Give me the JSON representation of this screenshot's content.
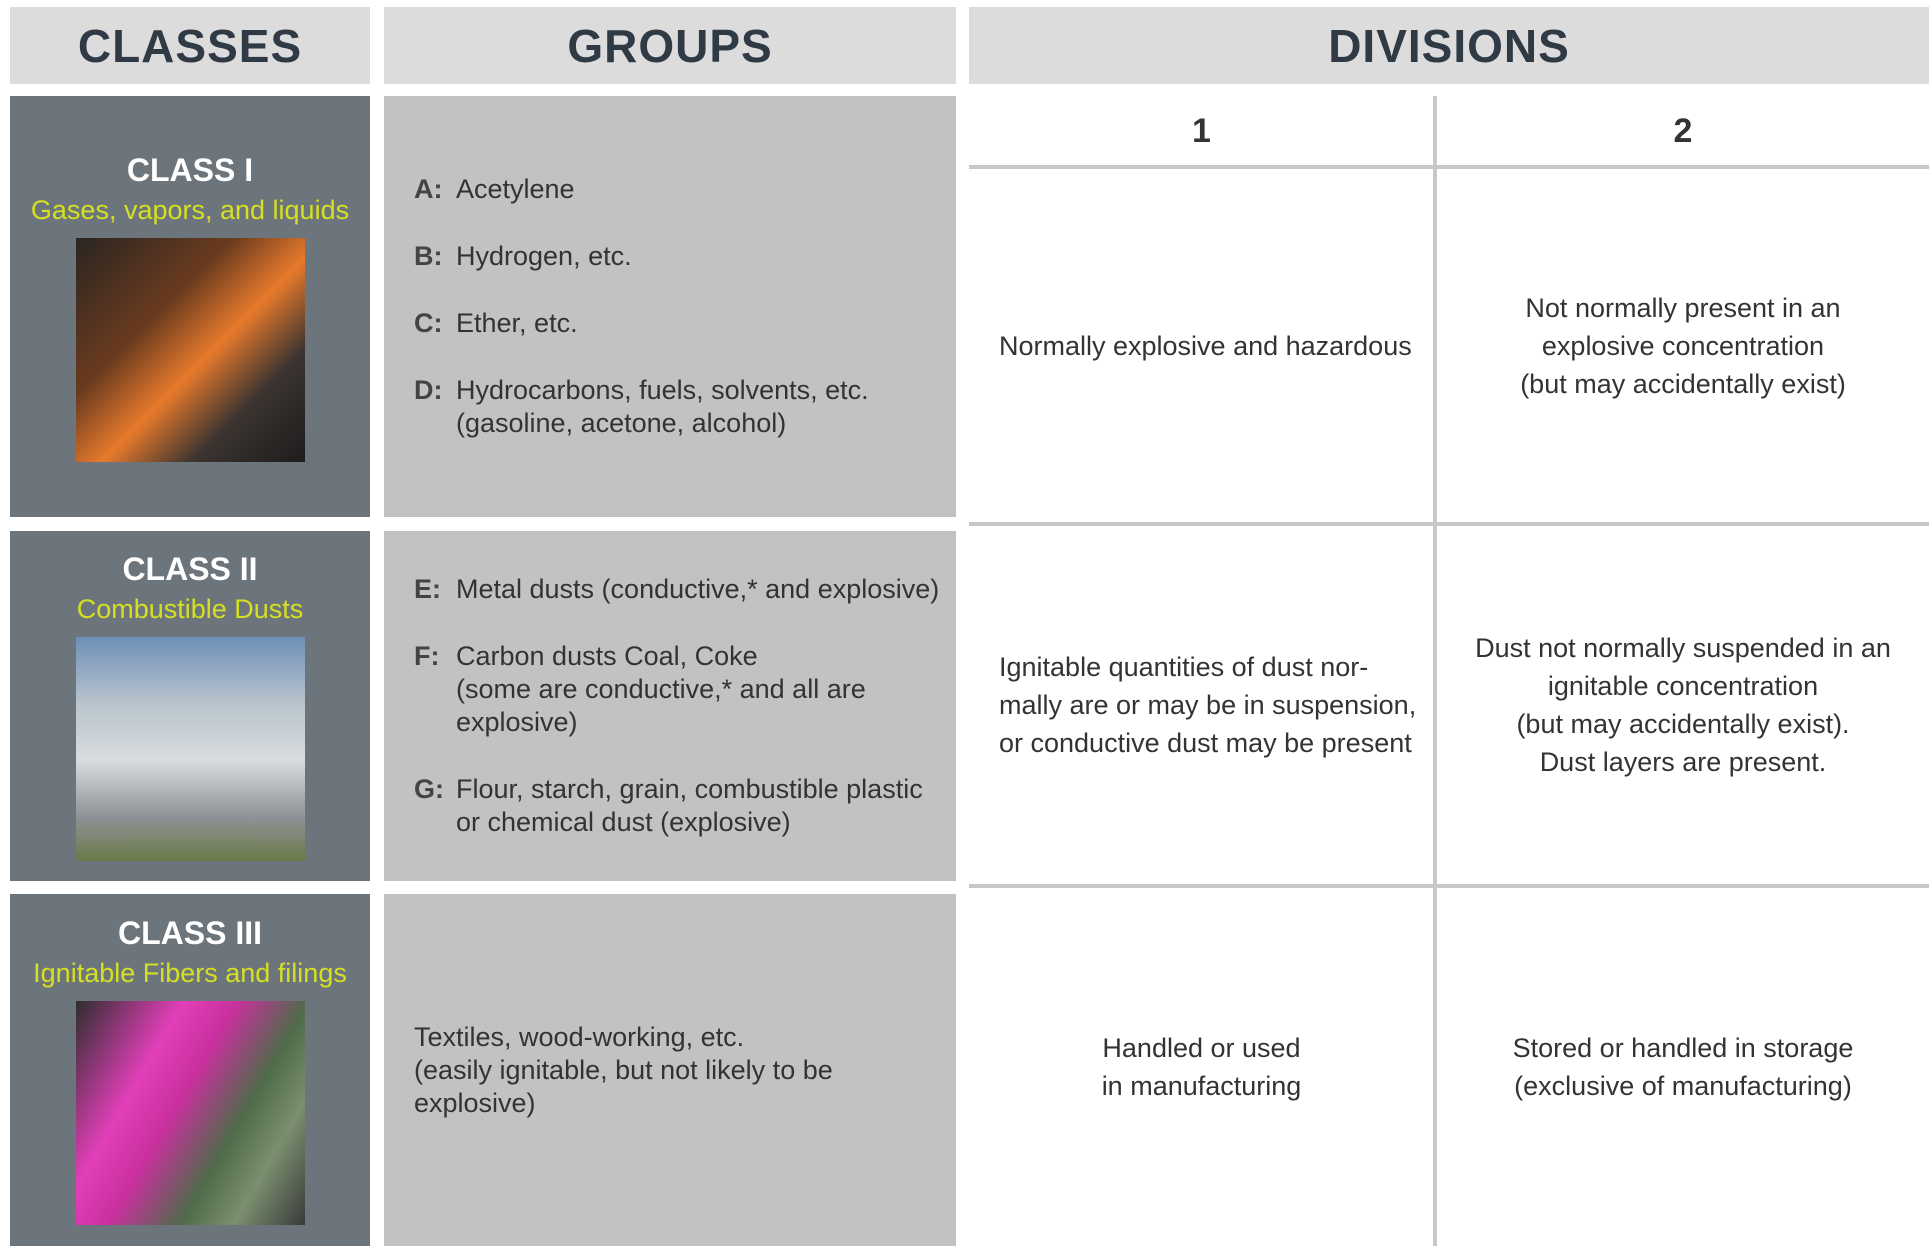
{
  "header": {
    "classes": "CLASSES",
    "groups": "GROUPS",
    "divisions": "DIVISIONS",
    "division_numbers": [
      "1",
      "2"
    ]
  },
  "rows": [
    {
      "class": "CLASS I",
      "description": "Gases, vapors, and liquids",
      "groups": [
        {
          "letter": "A:",
          "lines": [
            "Acetylene"
          ]
        },
        {
          "letter": "B:",
          "lines": [
            "Hydrogen, etc."
          ]
        },
        {
          "letter": "C:",
          "lines": [
            "Ether, etc."
          ]
        },
        {
          "letter": "D:",
          "lines": [
            "Hydrocarbons, fuels, solvents, etc.",
            "(gasoline, acetone, alcohol)"
          ]
        }
      ],
      "division_1": [
        "Normally explosive and hazardous"
      ],
      "division_2": [
        "Not normally present in an",
        "explosive concentration",
        "(but may accidentally exist)"
      ]
    },
    {
      "class": "CLASS II",
      "description": "Combustible Dusts",
      "groups": [
        {
          "letter": "E:",
          "lines": [
            "Metal dusts (conductive,* and explosive)"
          ]
        },
        {
          "letter": "F:",
          "lines": [
            "Carbon dusts Coal, Coke",
            "(some are conductive,* and all are",
            "explosive)"
          ]
        },
        {
          "letter": "G:",
          "lines": [
            "Flour, starch, grain, combustible plastic",
            "or chemical dust (explosive)"
          ]
        }
      ],
      "division_1": [
        "Ignitable quantities of dust nor-",
        "mally are or may be in suspension,",
        "or conductive dust may be present"
      ],
      "division_2": [
        "Dust not normally suspended in an",
        "ignitable concentration",
        "(but may accidentally exist).",
        "Dust layers are present."
      ]
    },
    {
      "class": "CLASS III",
      "description": "Ignitable Fibers and filings",
      "groups": [
        {
          "lines": [
            "Textiles, wood-working, etc.",
            "(easily ignitable, but not likely to be explosive)"
          ]
        }
      ],
      "division_1": [
        "Handled or used",
        "in manufacturing"
      ],
      "division_2": [
        "Stored or handled in storage",
        "(exclusive of manufacturing)"
      ]
    }
  ]
}
